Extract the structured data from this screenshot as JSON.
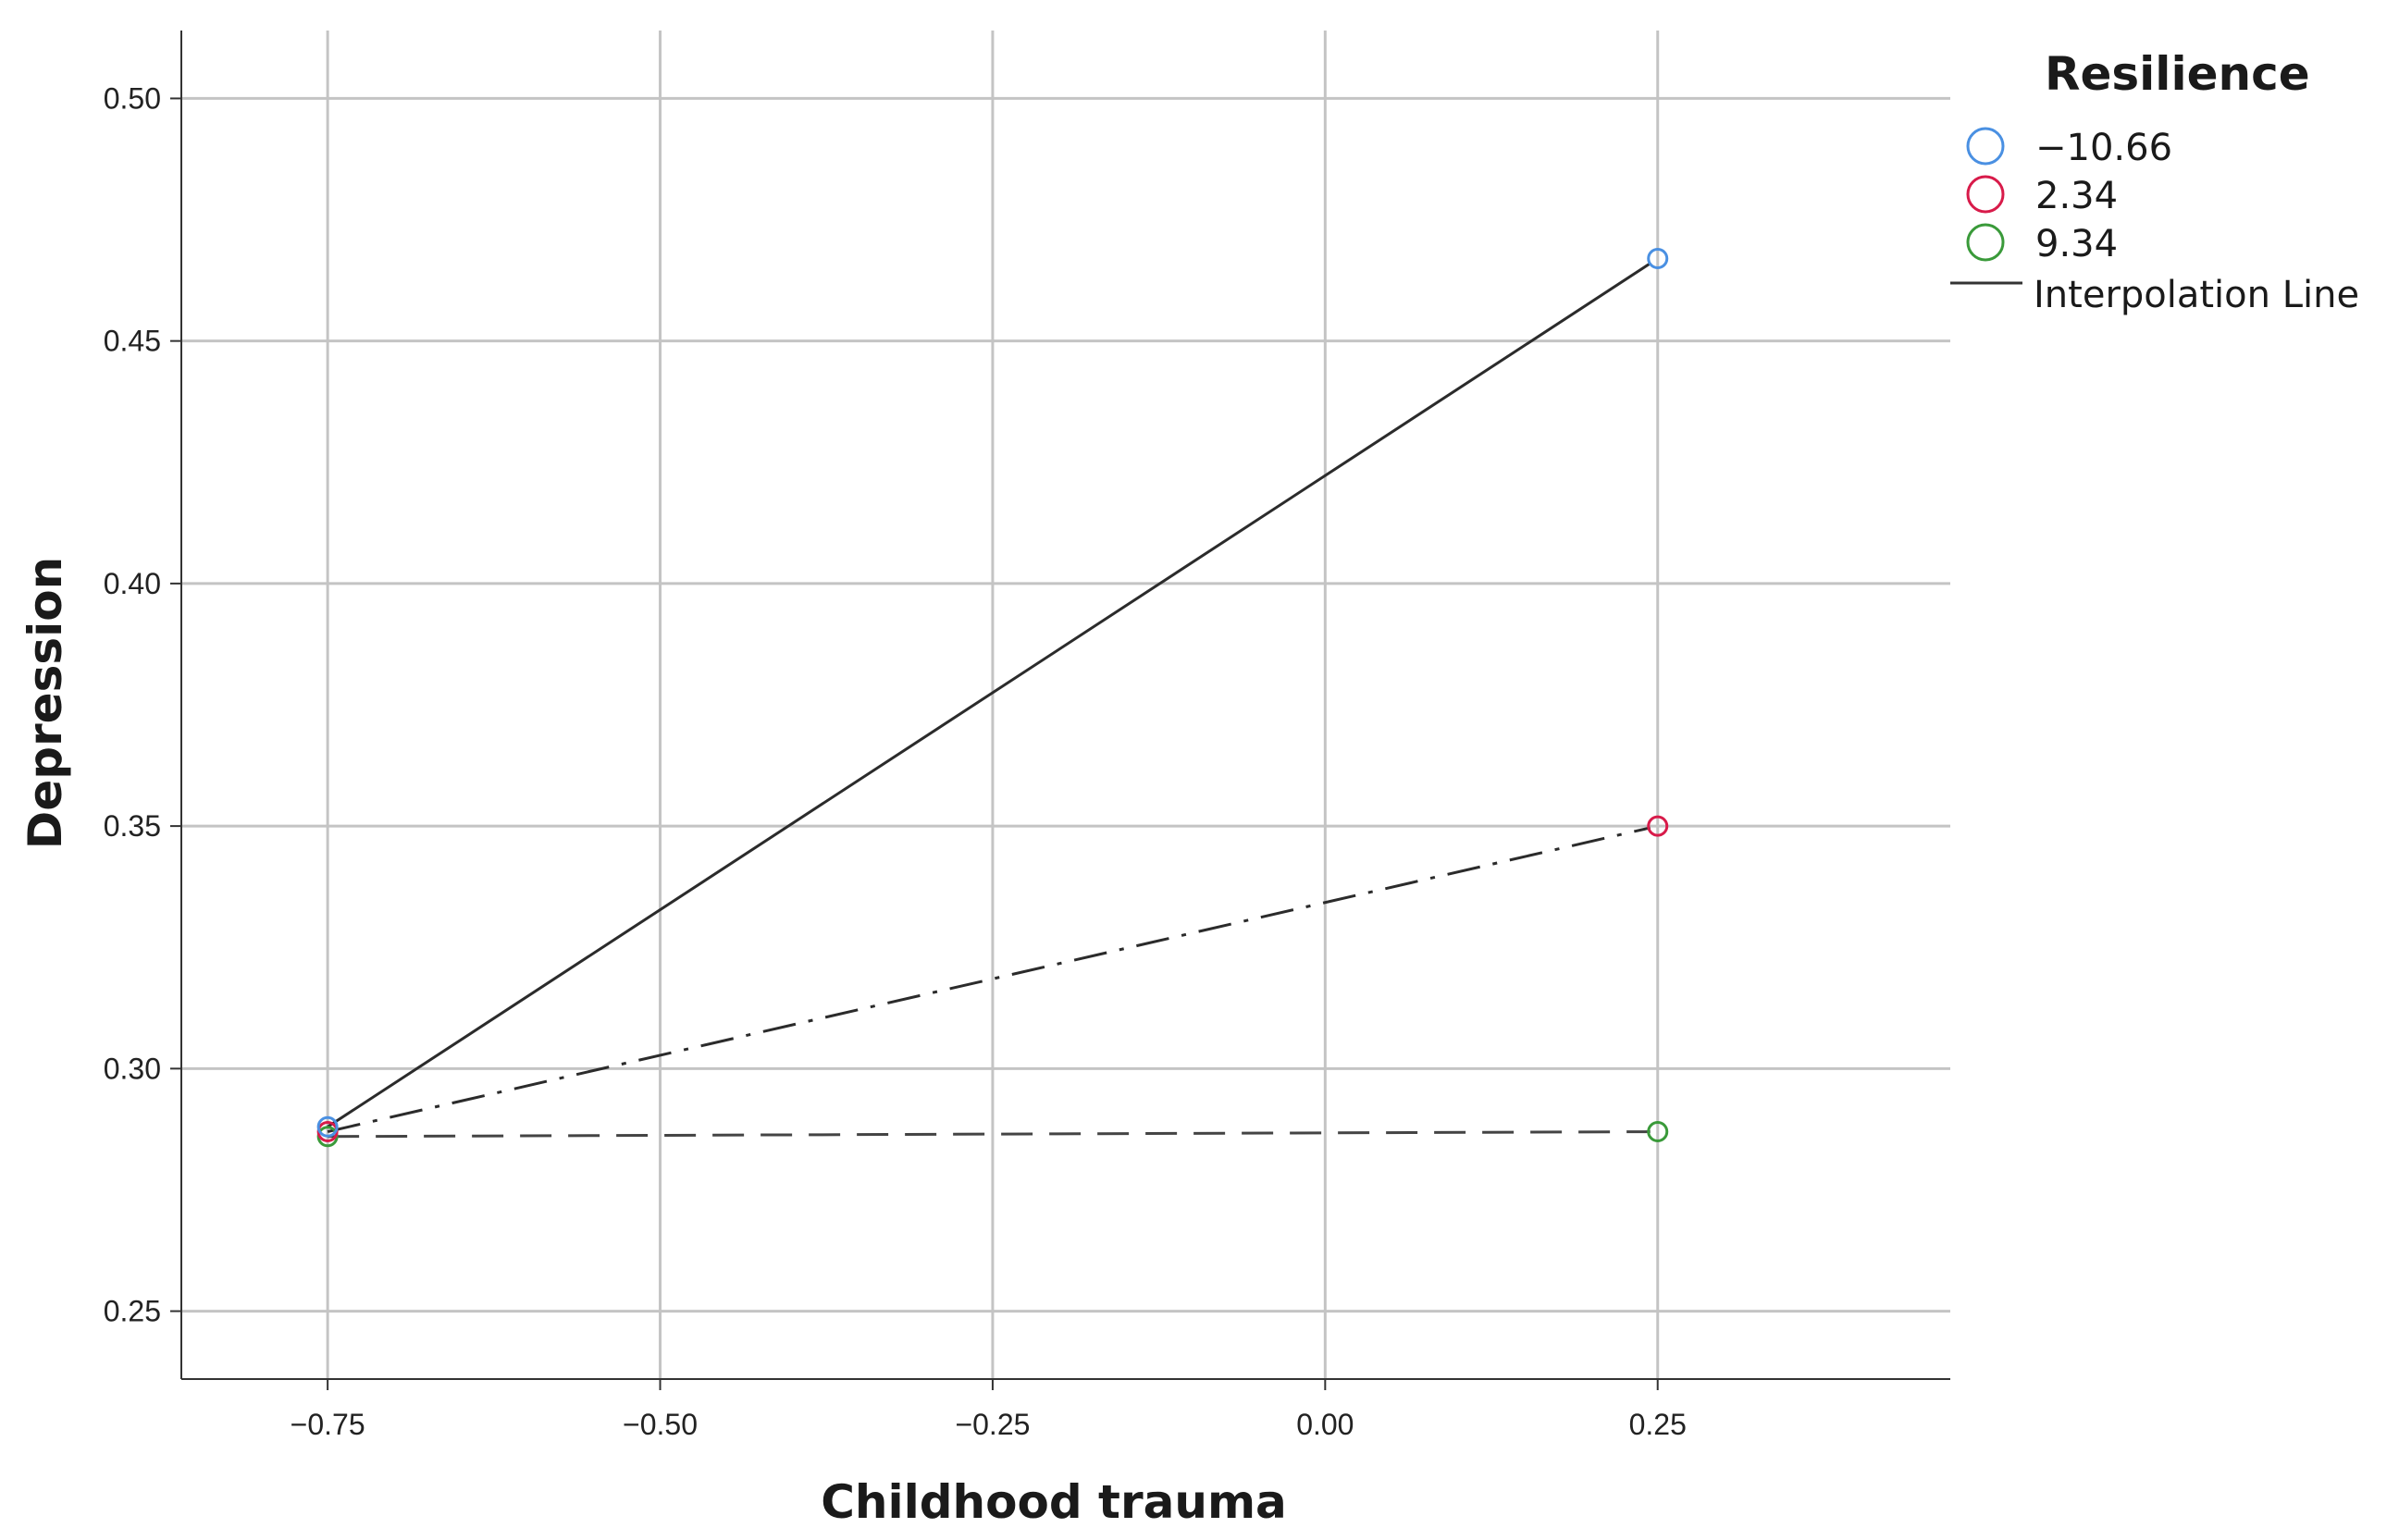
{
  "chart_data": {
    "type": "line",
    "title": "",
    "xlabel": "Childhood trauma",
    "ylabel": "Depression",
    "xlim": [
      -0.86,
      0.47
    ],
    "ylim": [
      0.236,
      0.514
    ],
    "x_ticks": [
      -0.75,
      -0.5,
      -0.25,
      0.0,
      0.25
    ],
    "x_tick_labels": [
      "−0.75",
      "−0.50",
      "−0.25",
      "0.00",
      "0.25"
    ],
    "y_ticks": [
      0.25,
      0.3,
      0.35,
      0.4,
      0.45,
      0.5
    ],
    "y_tick_labels": [
      "0.25",
      "0.30",
      "0.35",
      "0.40",
      "0.45",
      "0.50"
    ],
    "grid": true,
    "legend": {
      "title": "Resilience",
      "placement": "right",
      "line_label": "Interpolation Line"
    },
    "series": [
      {
        "name": "−10.66",
        "color": "#4a90e2",
        "line_style": "solid",
        "x": [
          -0.75,
          0.25
        ],
        "y": [
          0.288,
          0.467
        ]
      },
      {
        "name": "2.34",
        "color": "#d81b4a",
        "line_style": "dashdot",
        "x": [
          -0.75,
          0.25
        ],
        "y": [
          0.287,
          0.35
        ]
      },
      {
        "name": "9.34",
        "color": "#3a9a3a",
        "line_style": "dashed",
        "x": [
          -0.75,
          0.25
        ],
        "y": [
          0.286,
          0.287
        ]
      }
    ]
  }
}
